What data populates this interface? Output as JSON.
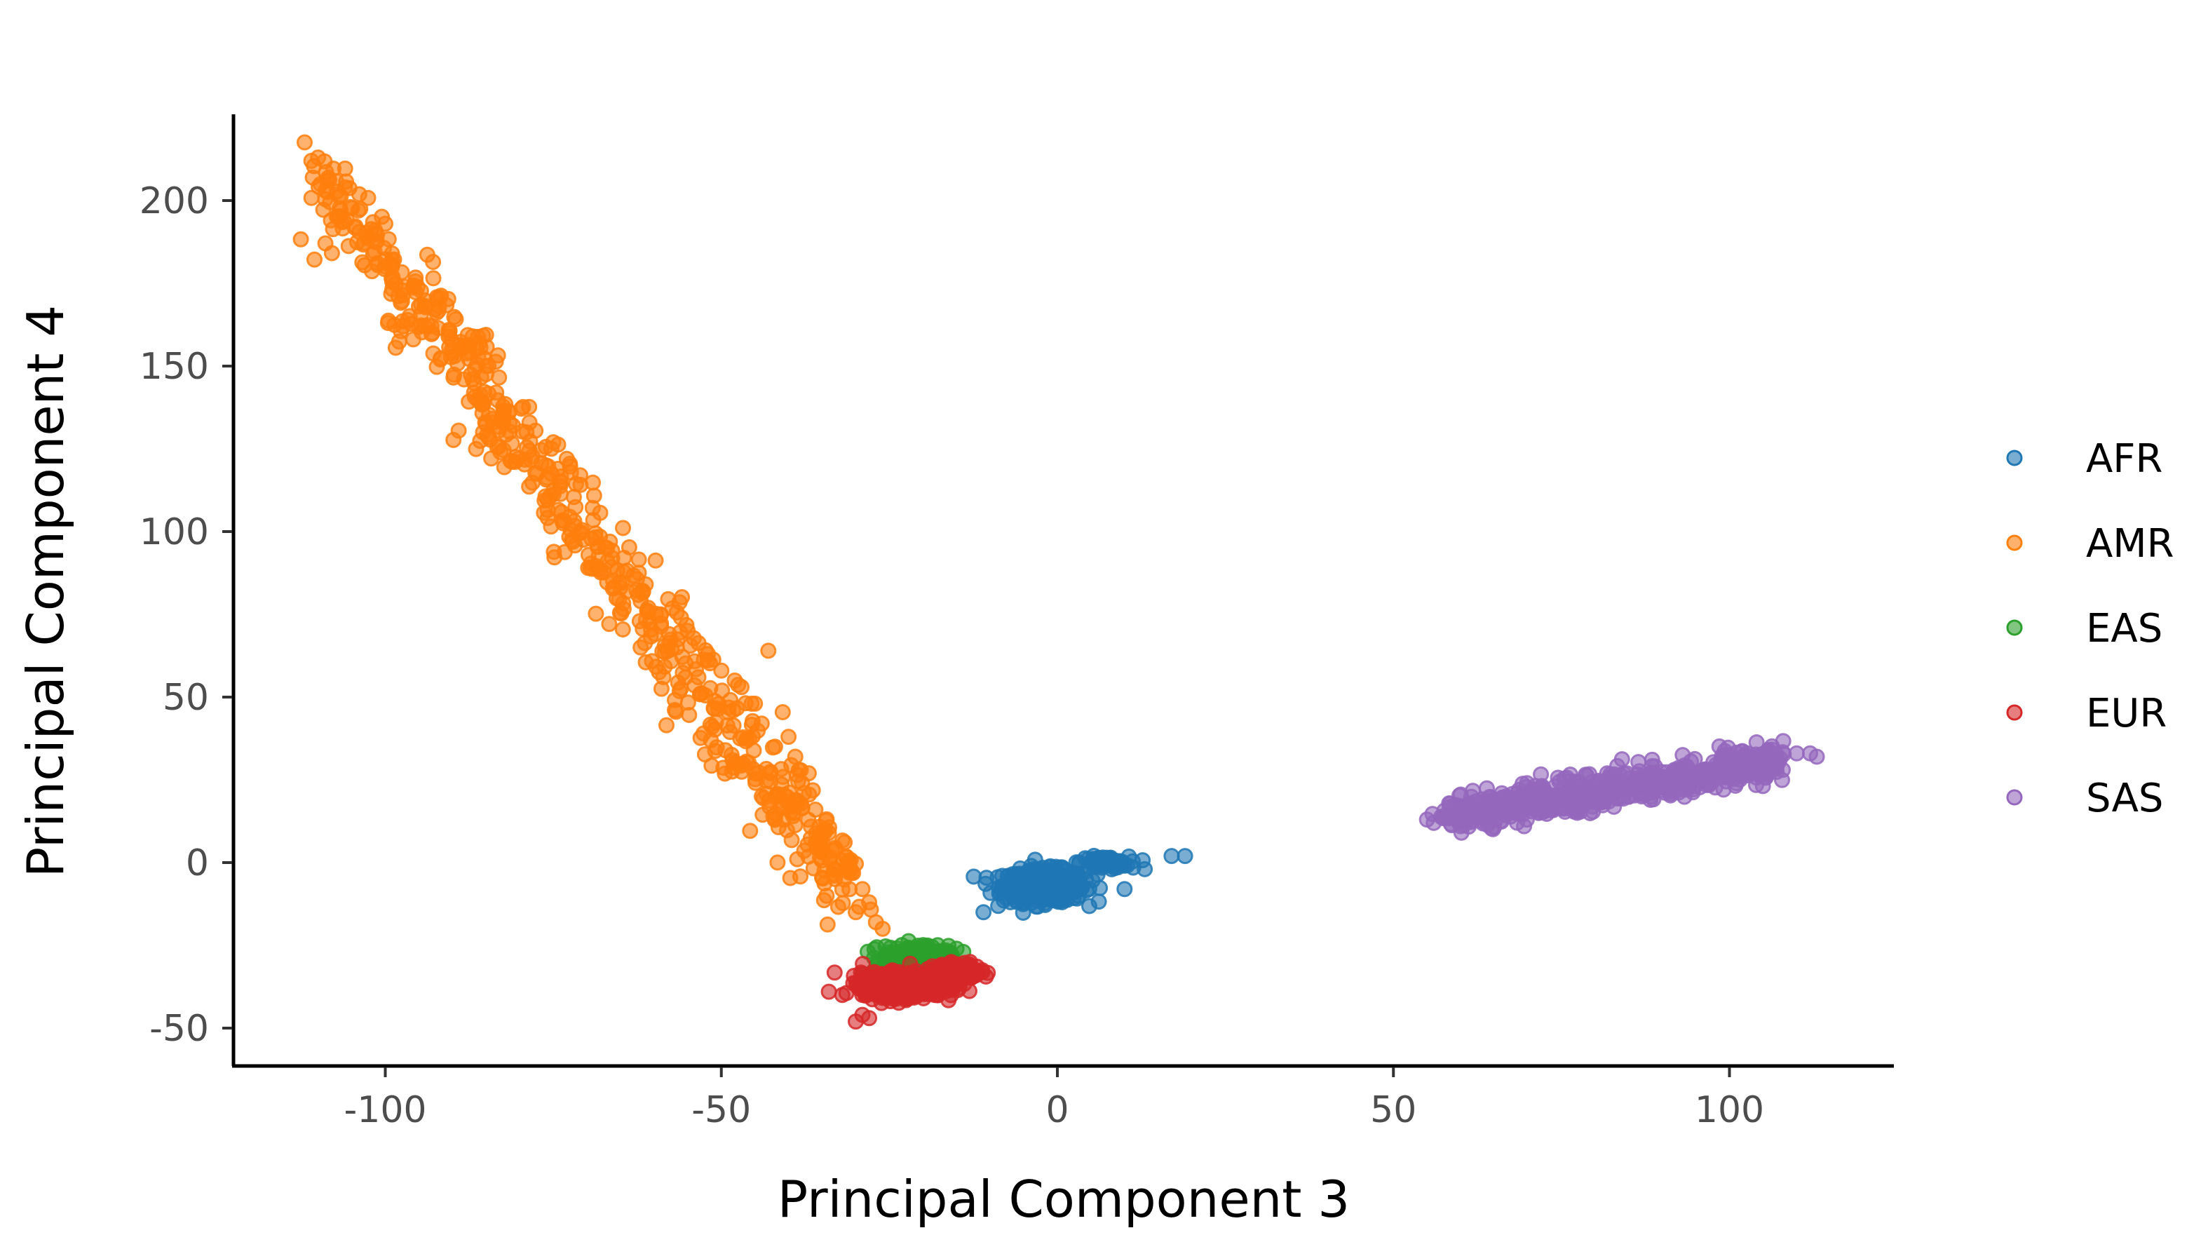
{
  "chart_data": {
    "type": "scatter",
    "title": "",
    "xlabel": "Principal Component 3",
    "ylabel": "Principal Component 4",
    "xlim": [
      -123,
      123
    ],
    "ylim": [
      -61,
      224
    ],
    "x_ticks": [
      -100,
      -50,
      0,
      50,
      100
    ],
    "y_ticks": [
      -50,
      0,
      50,
      100,
      150,
      200
    ],
    "grid": false,
    "legend_position": "right",
    "series": [
      {
        "name": "AFR",
        "color": "#1f77b4",
        "clusters": [
          {
            "center": [
              -2,
              -7
            ],
            "spread": [
              5,
              4
            ],
            "count": 520
          },
          {
            "center": [
              7,
              0
            ],
            "spread": [
              3,
              1.5
            ],
            "count": 80
          }
        ],
        "points": [
          [
            17,
            2
          ],
          [
            19,
            2
          ],
          [
            10,
            -8
          ],
          [
            13,
            -2
          ],
          [
            -11,
            -15
          ]
        ]
      },
      {
        "name": "AMR",
        "color": "#ff7f0e",
        "band": {
          "from": [
            -110,
            208
          ],
          "to": [
            -31,
            -8
          ],
          "count": 620,
          "noise": 6
        },
        "points": [
          [
            -111,
            212
          ],
          [
            -110,
            213
          ],
          [
            -106,
            204
          ],
          [
            -104,
            197
          ],
          [
            -100,
            193
          ],
          [
            -99,
            182
          ],
          [
            -97,
            174
          ],
          [
            -99,
            184
          ],
          [
            -95,
            168
          ],
          [
            -93,
            160
          ],
          [
            -92,
            168
          ],
          [
            -90,
            154
          ],
          [
            -87,
            146
          ],
          [
            -86,
            157
          ],
          [
            -85,
            150
          ],
          [
            -84,
            133
          ],
          [
            -81,
            132
          ],
          [
            -79,
            130
          ],
          [
            -75,
            127
          ],
          [
            -73,
            122
          ],
          [
            -71,
            117
          ],
          [
            -67,
            95
          ],
          [
            -64,
            82
          ],
          [
            -62,
            79
          ],
          [
            -59,
            75
          ],
          [
            -55,
            70
          ],
          [
            -52,
            63
          ],
          [
            -50,
            58
          ],
          [
            -47,
            53
          ],
          [
            -44,
            42
          ],
          [
            -42,
            35
          ],
          [
            -39,
            32
          ],
          [
            -38,
            24
          ],
          [
            -36,
            16
          ],
          [
            -34,
            9
          ],
          [
            -33,
            4
          ],
          [
            -31,
            -3
          ],
          [
            -29,
            -8
          ],
          [
            -27,
            -18
          ],
          [
            -26,
            -20
          ],
          [
            -30,
            -15
          ],
          [
            -48,
            55
          ],
          [
            -45,
            48
          ],
          [
            -40,
            38
          ],
          [
            -37,
            27
          ],
          [
            -28,
            -12
          ],
          [
            -43,
            64
          ],
          [
            -56,
            74
          ]
        ]
      },
      {
        "name": "EAS",
        "color": "#2ca02c",
        "clusters": [
          {
            "center": [
              -21,
              -30
            ],
            "spread": [
              4,
              4
            ],
            "count": 420
          }
        ],
        "points": [
          [
            -14,
            -27
          ],
          [
            -15,
            -26
          ]
        ]
      },
      {
        "name": "EUR",
        "color": "#d62728",
        "clusters": [
          {
            "center": [
              -23,
              -37
            ],
            "spread": [
              5,
              3
            ],
            "count": 620
          },
          {
            "center": [
              -15,
              -33
            ],
            "spread": [
              3,
              2
            ],
            "count": 150
          }
        ],
        "points": [
          [
            -30,
            -48
          ],
          [
            -32,
            -40
          ],
          [
            -34,
            -39
          ],
          [
            -13,
            -30
          ],
          [
            -29,
            -46
          ],
          [
            -28,
            -47
          ]
        ]
      },
      {
        "name": "SAS",
        "color": "#9467bd",
        "band": {
          "from": [
            58,
            14
          ],
          "to": [
            108,
            31
          ],
          "count": 720,
          "noise": 2.5
        },
        "points": [
          [
            55,
            13
          ],
          [
            56,
            12
          ],
          [
            112,
            33
          ],
          [
            110,
            33
          ],
          [
            113,
            32
          ],
          [
            105,
            31
          ],
          [
            60,
            11
          ],
          [
            62,
            17
          ]
        ]
      }
    ]
  }
}
